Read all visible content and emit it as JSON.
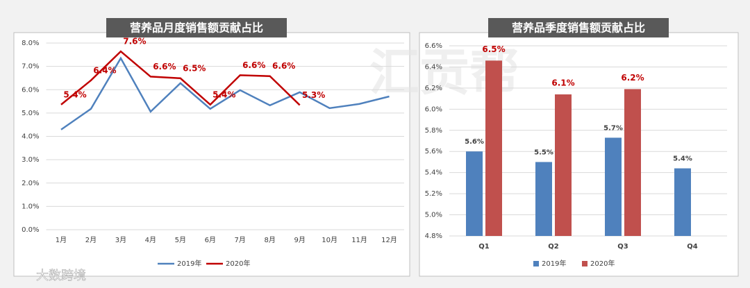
{
  "chart_data": [
    {
      "type": "line",
      "title": "营养品月度销售额贡献占比",
      "categories": [
        "1月",
        "2月",
        "3月",
        "4月",
        "5月",
        "6月",
        "7月",
        "8月",
        "9月",
        "10月",
        "11月",
        "12月"
      ],
      "series": [
        {
          "name": "2019年",
          "color": "#4f81bd",
          "values": [
            4.29,
            5.18,
            7.35,
            5.06,
            6.28,
            5.18,
            5.98,
            5.33,
            5.89,
            5.21,
            5.39,
            5.71
          ]
        },
        {
          "name": "2020年",
          "color": "#c00000",
          "values": [
            5.36,
            6.4,
            7.64,
            6.56,
            6.49,
            5.36,
            6.62,
            6.58,
            5.34,
            null,
            null,
            null
          ],
          "value_labels": [
            "5.4%",
            "6.4%",
            "7.6%",
            "6.6%",
            "6.5%",
            "5.4%",
            "6.6%",
            "6.6%",
            "5.3%",
            null,
            null,
            null
          ]
        }
      ],
      "ylim": [
        0,
        8
      ],
      "yticks": [
        {
          "value": 0,
          "label": "0.0%"
        },
        {
          "value": 1,
          "label": "1.0%"
        },
        {
          "value": 2,
          "label": "2.0%"
        },
        {
          "value": 3,
          "label": "3.0%"
        },
        {
          "value": 4,
          "label": "4.0%"
        },
        {
          "value": 5,
          "label": "5.0%"
        },
        {
          "value": 6,
          "label": "6.0%"
        },
        {
          "value": 7,
          "label": "7.0%"
        },
        {
          "value": 8,
          "label": "8.0%"
        }
      ],
      "grid": true,
      "legend": "bottom"
    },
    {
      "type": "bar",
      "title": "营养品季度销售额贡献占比",
      "categories": [
        "Q1",
        "Q2",
        "Q3",
        "Q4"
      ],
      "series": [
        {
          "name": "2019年",
          "color": "#4f81bd",
          "values": [
            5.6,
            5.5,
            5.73,
            5.44
          ],
          "value_labels": [
            "5.6%",
            "5.5%",
            "5.7%",
            "5.4%"
          ]
        },
        {
          "name": "2020年",
          "color": "#c0504d",
          "values": [
            6.46,
            6.14,
            6.19,
            null
          ],
          "value_labels": [
            "6.5%",
            "6.1%",
            "6.2%",
            null
          ]
        }
      ],
      "ylim": [
        4.8,
        6.6
      ],
      "yticks": [
        {
          "value": 4.8,
          "label": "4.8%"
        },
        {
          "value": 5.0,
          "label": "5.0%"
        },
        {
          "value": 5.2,
          "label": "5.2%"
        },
        {
          "value": 5.4,
          "label": "5.4%"
        },
        {
          "value": 5.6,
          "label": "5.6%"
        },
        {
          "value": 5.8,
          "label": "5.8%"
        },
        {
          "value": 6.0,
          "label": "6.0%"
        },
        {
          "value": 6.2,
          "label": "6.2%"
        },
        {
          "value": 6.4,
          "label": "6.4%"
        },
        {
          "value": 6.6,
          "label": "6.6%"
        }
      ],
      "grid": true,
      "legend": "bottom"
    }
  ],
  "watermark": "汇贡帮",
  "logo_text": "大数跨境"
}
